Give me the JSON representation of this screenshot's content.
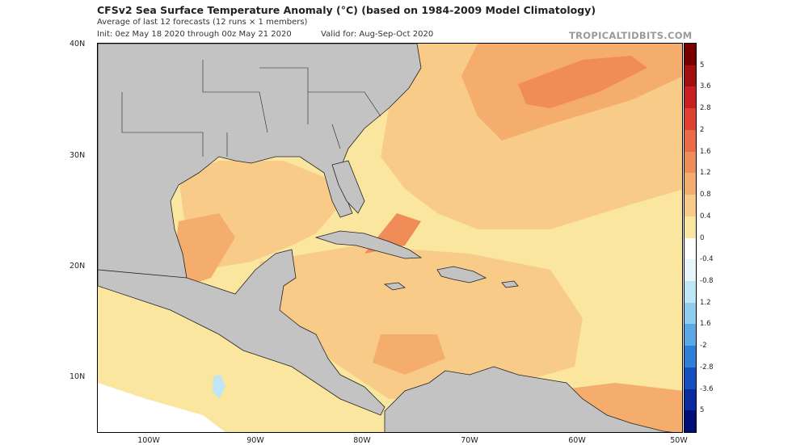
{
  "header": {
    "title": "CFSv2 Sea Surface Temperature Anomaly (°C) (based on 1984-2009 Model Climatology)",
    "subtitle": "Average of last 12 forecasts (12 runs × 1 members)",
    "init": "Init: 0ez May 18 2020 through 00z May 21 2020",
    "valid": "Valid for: Aug-Sep-Oct 2020",
    "brand": "TROPICALTIDBITS.COM"
  },
  "axes": {
    "lat_labels": [
      "40N",
      "30N",
      "20N",
      "10N"
    ],
    "lon_labels": [
      "100W",
      "90W",
      "80W",
      "70W",
      "60W",
      "50W"
    ]
  },
  "colorbar": {
    "labels": [
      "5",
      "3.6",
      "2.8",
      "2",
      "1.6",
      "1.2",
      "0.8",
      "0.4",
      "0",
      "-0.4",
      "-0.8",
      "1.2",
      "1.6",
      "-2",
      "-2.8",
      "-3.6",
      "5"
    ],
    "colors": [
      "#7a0000",
      "#a30f0f",
      "#c82020",
      "#e04030",
      "#ec6a45",
      "#f08c58",
      "#f5ad6e",
      "#f8cc88",
      "#fbe6a0",
      "#ffffff",
      "#e6f6fb",
      "#bfe6f5",
      "#8fcdee",
      "#5aa8e6",
      "#2d7fd8",
      "#1550c0",
      "#0a2aa0",
      "#000f78"
    ]
  },
  "map": {
    "land_color": "#c3c3c3",
    "ocean_colors": {
      "light": "#fbe6a0",
      "mid": "#f8cc88",
      "warm": "#f5ad6e",
      "hot": "#f08c58",
      "cool": "#bfe6f5",
      "white": "#ffffff"
    }
  }
}
